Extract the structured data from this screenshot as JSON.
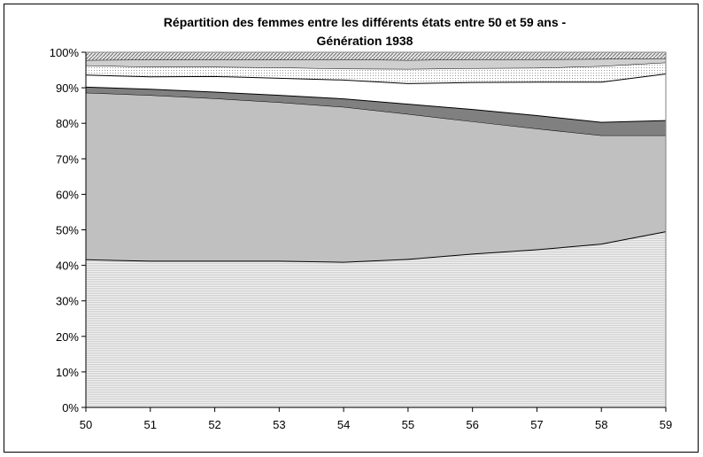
{
  "chart_data": {
    "type": "area",
    "stacked": true,
    "percent": true,
    "title": "Répartition des femmes entre les différents états entre 50 et 59 ans - Génération 1938",
    "title_lines": [
      "Répartition des femmes entre les différents états entre 50 et 59 ans -",
      "Génération 1938"
    ],
    "xlabel": "",
    "ylabel": "",
    "x": [
      50,
      51,
      52,
      53,
      54,
      55,
      56,
      57,
      58,
      59
    ],
    "x_tick_labels": [
      "50",
      "51",
      "52",
      "53",
      "54",
      "55",
      "56",
      "57",
      "58",
      "59"
    ],
    "ylim": [
      0,
      100
    ],
    "y_tick_labels": [
      "0%",
      "10%",
      "20%",
      "30%",
      "40%",
      "50%",
      "60%",
      "70%",
      "80%",
      "90%",
      "100%"
    ],
    "grid": false,
    "legend": "none",
    "series": [
      {
        "values": [
          41.7,
          41.3,
          41.3,
          41.3,
          41.0,
          41.8,
          43.3,
          44.5,
          46.1,
          49.6
        ],
        "fill": "#e6e6e6",
        "pattern": "hlines"
      },
      {
        "values": [
          46.9,
          46.6,
          45.7,
          44.6,
          43.6,
          40.8,
          37.2,
          34.0,
          30.5,
          27.0
        ],
        "fill": "#c0c0c0",
        "pattern": "none"
      },
      {
        "values": [
          1.7,
          1.8,
          1.9,
          2.1,
          2.4,
          2.9,
          3.5,
          3.8,
          3.8,
          4.3
        ],
        "fill": "#808080",
        "pattern": "none"
      },
      {
        "values": [
          3.4,
          3.5,
          4.4,
          4.8,
          5.3,
          5.8,
          7.6,
          9.4,
          11.3,
          13.1
        ],
        "fill": "#ffffff",
        "pattern": "none"
      },
      {
        "values": [
          2.6,
          2.7,
          2.6,
          2.9,
          3.1,
          4.0,
          3.9,
          3.9,
          4.4,
          3.1
        ],
        "fill": "#f2f2f2",
        "pattern": "dots"
      },
      {
        "values": [
          1.5,
          2.0,
          2.0,
          2.2,
          2.6,
          2.5,
          2.5,
          2.4,
          2.0,
          1.2
        ],
        "fill": "#cfcfcf",
        "pattern": "none"
      },
      {
        "values": [
          2.2,
          2.1,
          2.1,
          2.1,
          2.0,
          2.2,
          2.0,
          2.0,
          1.9,
          1.7
        ],
        "fill": "#d8d8d8",
        "pattern": "diag"
      }
    ],
    "colors": {
      "line": "#000000",
      "background": "#ffffff"
    }
  }
}
